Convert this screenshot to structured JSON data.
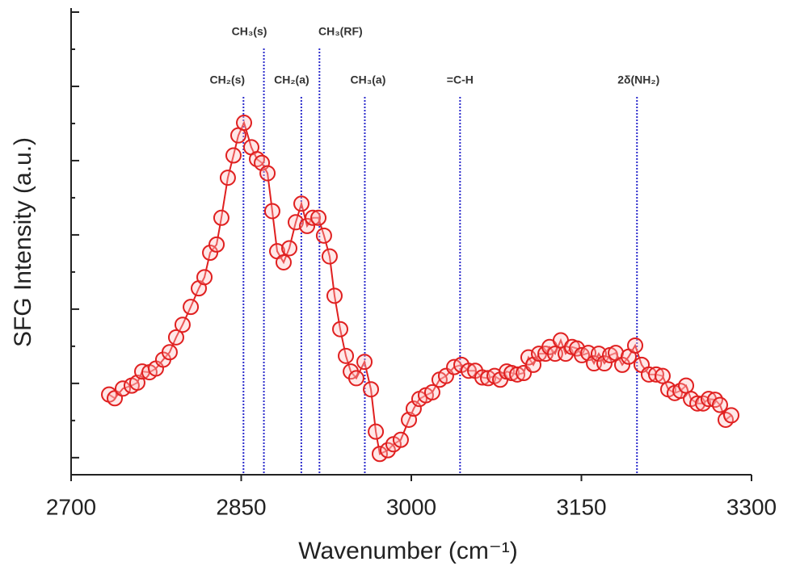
{
  "chart_data": {
    "type": "line",
    "xlabel": "Wavenumber (cm⁻¹)",
    "ylabel": "SFG Intensity (a.u.)",
    "xlim": [
      2700,
      3300
    ],
    "xticks": [
      2700,
      2850,
      3000,
      3150,
      3300
    ],
    "ylim": [
      -0.23,
      6.0
    ],
    "yticks": [
      0,
      0.5,
      1,
      1.5,
      2,
      2.5,
      3,
      3.5,
      4,
      4.5,
      5,
      5.5,
      6
    ],
    "series": [
      {
        "color": "#e02020",
        "x": [
          2733.5,
          2738.5,
          2745.6,
          2753.4,
          2758.4,
          2762.7,
          2769.1,
          2774.8,
          2781.2,
          2786.9,
          2792.6,
          2798.3,
          2805.5,
          2812.6,
          2817.6,
          2822.6,
          2828.3,
          2832.5,
          2838.2,
          2843.2,
          2847.5,
          2852.5,
          2858.9,
          2863.9,
          2868.2,
          2873.2,
          2877.4,
          2881.7,
          2887.4,
          2892.4,
          2898.1,
          2903.1,
          2908.1,
          2913.1,
          2918.1,
          2923.0,
          2928.0,
          2932.3,
          2937.3,
          2942.3,
          2946.6,
          2951.5,
          2958.7,
          2964.4,
          2968.7,
          2972.2,
          2979.3,
          2984.3,
          2990.7,
          2997.9,
          3002.1,
          3007.1,
          3012.8,
          3018.5,
          3024.9,
          3030.6,
          3037.8,
          3044.2,
          3050.6,
          3056.3,
          3062.7,
          3067.7,
          3073.4,
          3078.4,
          3084.1,
          3088.4,
          3093.4,
          3099.1,
          3103.3,
          3107.6,
          3112.6,
          3118.3,
          3121.9,
          3126.8,
          3131.8,
          3136.1,
          3141.8,
          3146.1,
          3150.4,
          3156.1,
          3161.1,
          3165.3,
          3170.3,
          3175.3,
          3180.3,
          3186.0,
          3191.7,
          3197.4,
          3203.1,
          3209.5,
          3215.9,
          3221.6,
          3226.6,
          3232.3,
          3237.3,
          3242.3,
          3246.6,
          3252.3,
          3257.3,
          3262.2,
          3267.9,
          3272.2,
          3277.2,
          3282.2
        ],
        "values": [
          0.85,
          0.8,
          0.93,
          0.97,
          1.01,
          1.16,
          1.15,
          1.2,
          1.32,
          1.42,
          1.62,
          1.79,
          2.03,
          2.28,
          2.43,
          2.76,
          2.87,
          3.23,
          3.77,
          4.07,
          4.34,
          4.51,
          4.18,
          4.02,
          3.97,
          3.83,
          3.32,
          2.78,
          2.63,
          2.82,
          3.17,
          3.42,
          3.12,
          3.23,
          3.23,
          2.99,
          2.71,
          2.18,
          1.73,
          1.37,
          1.16,
          1.07,
          1.29,
          0.92,
          0.35,
          0.05,
          0.1,
          0.18,
          0.24,
          0.51,
          0.66,
          0.79,
          0.84,
          0.88,
          1.05,
          1.1,
          1.22,
          1.25,
          1.17,
          1.17,
          1.08,
          1.07,
          1.1,
          1.05,
          1.16,
          1.14,
          1.12,
          1.14,
          1.35,
          1.25,
          1.4,
          1.4,
          1.49,
          1.4,
          1.58,
          1.4,
          1.49,
          1.47,
          1.38,
          1.41,
          1.27,
          1.4,
          1.27,
          1.38,
          1.41,
          1.25,
          1.36,
          1.51,
          1.25,
          1.12,
          1.12,
          1.1,
          0.92,
          0.87,
          0.9,
          0.97,
          0.79,
          0.73,
          0.73,
          0.79,
          0.78,
          0.71,
          0.51,
          0.57
        ]
      }
    ],
    "vlines_color": "#2a2acc",
    "vlines": [
      {
        "label": "CH₂(s)",
        "x": 2852
      },
      {
        "label": "CH₃(s)",
        "x": 2870
      },
      {
        "label": "CH₂(a)",
        "x": 2903
      },
      {
        "label": "CH₃(RF)",
        "x": 2919
      },
      {
        "label": "CH₃(a)",
        "x": 2959
      },
      {
        "label": "=C-H",
        "x": 3043
      },
      {
        "label": "2δ(NH₂)",
        "x": 3199
      }
    ]
  }
}
